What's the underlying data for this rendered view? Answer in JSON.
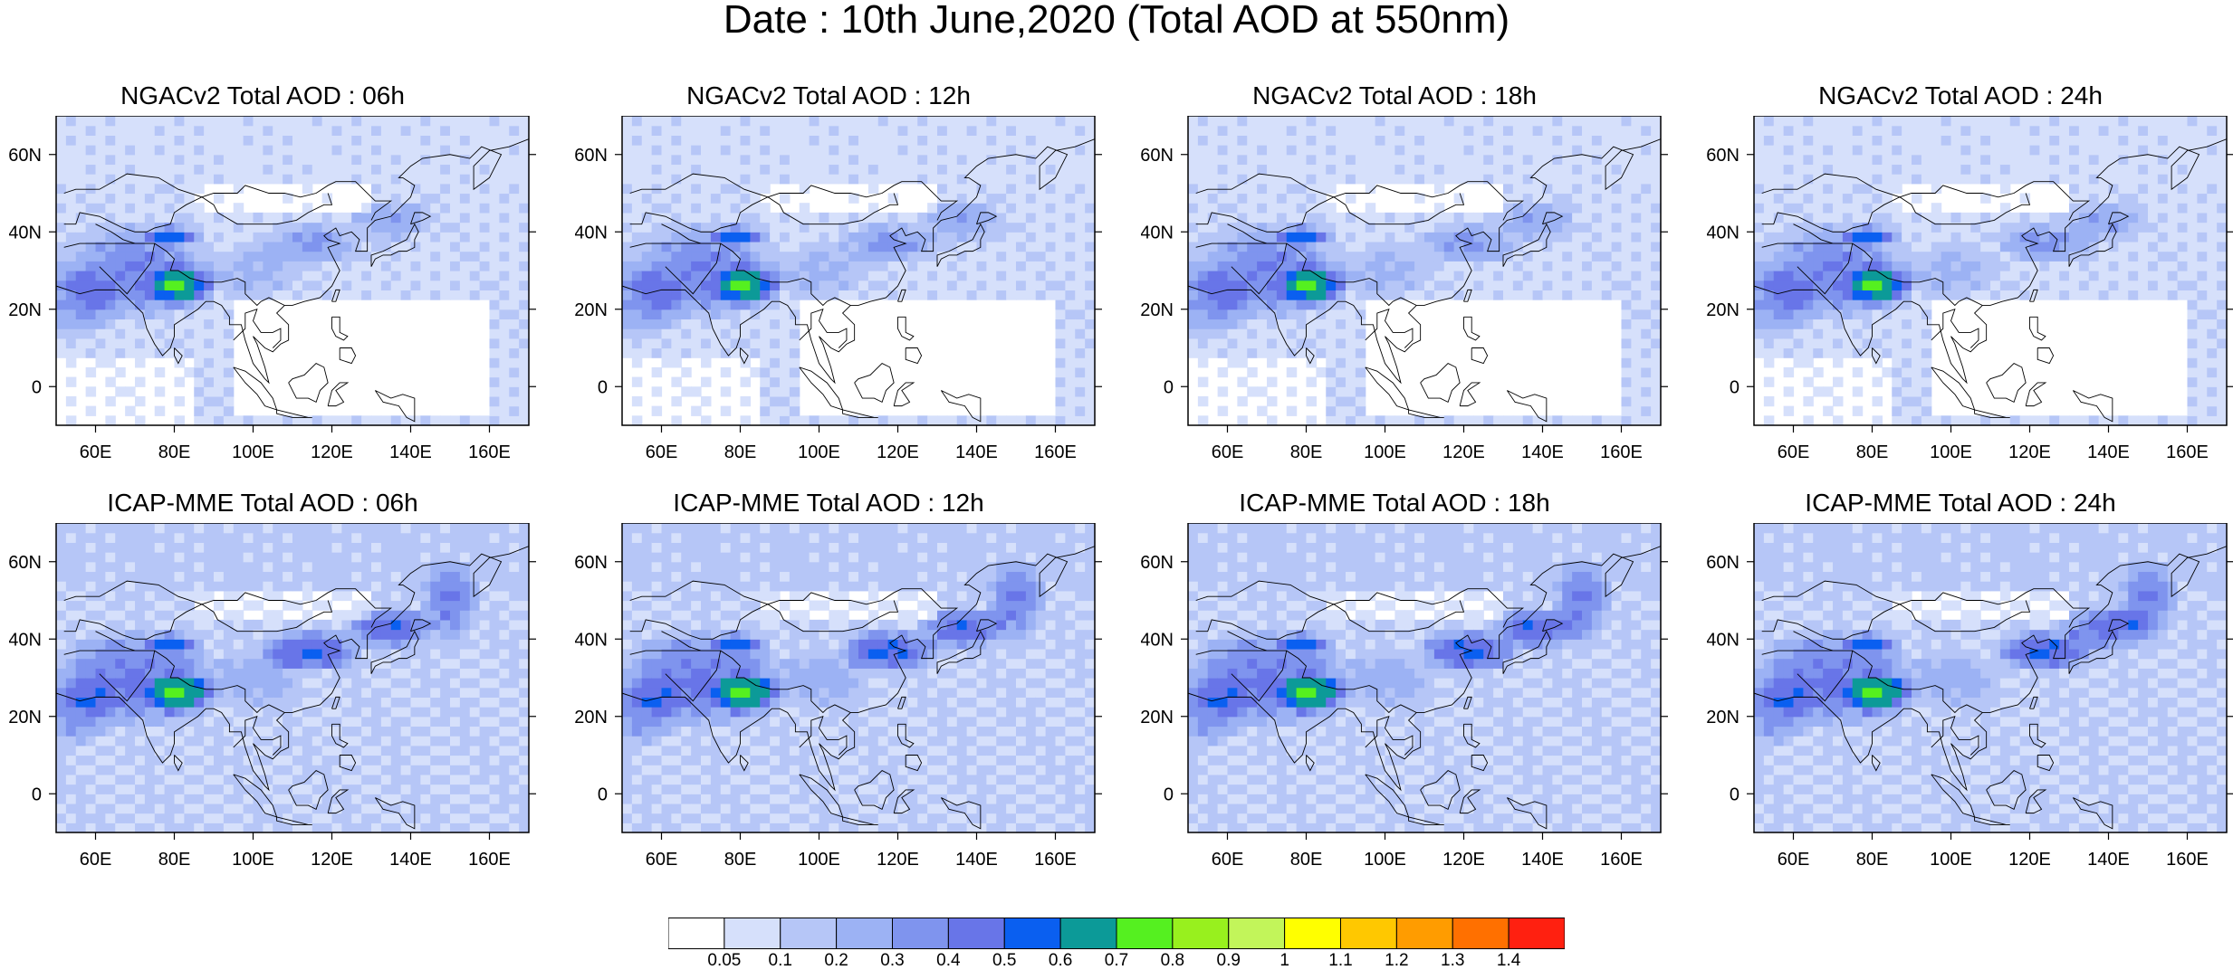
{
  "title": "Date : 10th June,2020 (Total AOD at 550nm)",
  "axes": {
    "lon_ticks": [
      "60E",
      "80E",
      "100E",
      "120E",
      "140E",
      "160E"
    ],
    "lat_ticks": [
      "60N",
      "40N",
      "20N",
      "0"
    ],
    "lon_values": [
      60,
      80,
      100,
      120,
      140,
      160
    ],
    "lat_values": [
      60,
      40,
      20,
      0
    ],
    "lon_range": [
      50,
      170
    ],
    "lat_range": [
      -10,
      70
    ]
  },
  "panels": [
    {
      "title": "NGACv2 Total AOD : 06h",
      "model": "NGACv2",
      "hour": "06h"
    },
    {
      "title": "NGACv2 Total AOD : 12h",
      "model": "NGACv2",
      "hour": "12h"
    },
    {
      "title": "NGACv2 Total AOD : 18h",
      "model": "NGACv2",
      "hour": "18h"
    },
    {
      "title": "NGACv2 Total AOD : 24h",
      "model": "NGACv2",
      "hour": "24h"
    },
    {
      "title": "ICAP-MME Total AOD : 06h",
      "model": "ICAP-MME",
      "hour": "06h"
    },
    {
      "title": "ICAP-MME Total AOD : 12h",
      "model": "ICAP-MME",
      "hour": "12h"
    },
    {
      "title": "ICAP-MME Total AOD : 18h",
      "model": "ICAP-MME",
      "hour": "18h"
    },
    {
      "title": "ICAP-MME Total AOD : 24h",
      "model": "ICAP-MME",
      "hour": "24h"
    }
  ],
  "colorbar": {
    "labels": [
      "0.05",
      "0.1",
      "0.2",
      "0.3",
      "0.4",
      "0.5",
      "0.6",
      "0.7",
      "0.8",
      "0.9",
      "1",
      "1.1",
      "1.2",
      "1.3",
      "1.4"
    ],
    "colors": [
      "#ffffff",
      "#d6e0fb",
      "#b6c6f7",
      "#9cb2f4",
      "#7f94ee",
      "#6875e8",
      "#0a5ff0",
      "#0c9a98",
      "#55f020",
      "#98f01e",
      "#c2f55a",
      "#ffff00",
      "#ffc800",
      "#ff9c00",
      "#ff7000",
      "#ff2010"
    ]
  }
}
